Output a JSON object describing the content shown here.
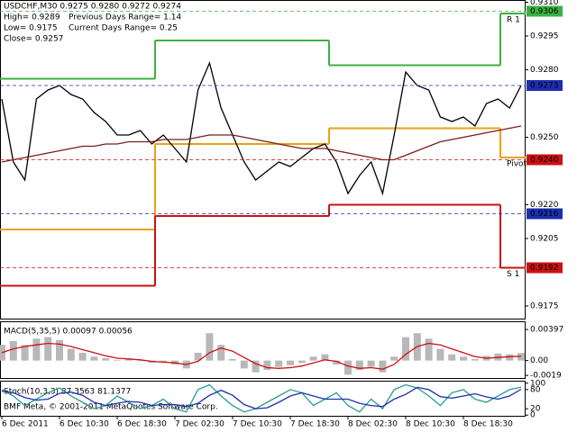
{
  "chart_data": [
    {
      "type": "line",
      "title": "USDCHF,M30  0.9275 0.9280 0.9272 0.9274",
      "annotations": [
        "High= 0.9289",
        "Previous Days Range= 1.14",
        "Low= 0.9175",
        "Current Days Range= 0.25",
        "Close= 0.9257"
      ],
      "categories": [
        "6 Dec 2011",
        null,
        null,
        null,
        null,
        "6 Dec 10:30",
        null,
        null,
        null,
        null,
        "6 Dec 18:30",
        null,
        null,
        null,
        null,
        "7 Dec 02:30",
        null,
        null,
        null,
        null,
        "7 Dec 10:30",
        null,
        null,
        null,
        null,
        "7 Dec 18:30",
        null,
        null,
        null,
        null,
        "8 Dec 02:30",
        null,
        null,
        null,
        null,
        "8 Dec 10:30",
        null,
        null,
        null,
        null,
        "8 Dec 18:30",
        null,
        null,
        null,
        null,
        null
      ],
      "series": [
        {
          "color": "#000000",
          "values": [
            0.9267,
            0.9239,
            0.9231,
            0.9267,
            0.9271,
            0.9273,
            0.9269,
            0.9267,
            0.9261,
            0.9257,
            0.9251,
            0.9251,
            0.9253,
            0.9247,
            0.9251,
            0.9245,
            0.9239,
            0.9271,
            0.9283,
            0.9263,
            0.9251,
            0.9239,
            0.9231,
            0.9235,
            0.9239,
            0.9237,
            0.9241,
            0.9245,
            0.9247,
            0.9239,
            0.9225,
            0.9233,
            0.9239,
            0.9225,
            0.9251,
            0.9279,
            0.9273,
            0.9271,
            0.9259,
            0.9257,
            0.9259,
            0.9255,
            0.9265,
            0.9267,
            0.9263,
            0.9273
          ]
        },
        {
          "color": "#7b1c1c",
          "values": [
            0.9239,
            0.924,
            0.9241,
            0.9242,
            0.9243,
            0.9244,
            0.9245,
            0.9246,
            0.9246,
            0.9247,
            0.9247,
            0.9248,
            0.9248,
            0.9248,
            0.9249,
            0.9249,
            0.9249,
            0.925,
            0.9251,
            0.9251,
            0.9251,
            0.925,
            0.9249,
            0.9248,
            0.9247,
            0.9246,
            0.9245,
            0.9245,
            0.9245,
            0.9244,
            0.9243,
            0.9242,
            0.9241,
            0.924,
            0.924,
            0.9242,
            0.9244,
            0.9246,
            0.9248,
            0.9249,
            0.925,
            0.9251,
            0.9252,
            0.9253,
            0.9254,
            0.9255
          ]
        }
      ],
      "step_levels": [
        {
          "label": "R 1",
          "color": "#3cb043",
          "values": [
            0.9276,
            0.9293,
            0.9282,
            0.9305
          ]
        },
        {
          "label": "Pivot",
          "color": "#e8a317",
          "values": [
            0.9209,
            0.9247,
            0.9254,
            0.9241
          ]
        },
        {
          "label": "S 1",
          "color": "#cc1111",
          "values": [
            0.9184,
            0.9215,
            0.922,
            0.9192
          ]
        }
      ],
      "price_levels": [
        {
          "value": 0.9306,
          "color": "#3cb043"
        },
        {
          "value": 0.9273,
          "color": "#1c2fb0"
        },
        {
          "value": 0.924,
          "label": "0.9240",
          "color": "#cc1111"
        },
        {
          "value": 0.9216,
          "color": "#1c2fb0"
        },
        {
          "value": 0.9192,
          "color": "#cc1111"
        }
      ],
      "ylim": [
        0.9169,
        0.9311
      ],
      "yticks": [
        {
          "value": 0.931,
          "label": "0.9310"
        },
        0.9295,
        {
          "value": 0.928,
          "label": "0.9280"
        },
        {
          "value": 0.925,
          "label": "0.9250"
        },
        {
          "value": 0.922,
          "label": "0.9220"
        },
        0.9205,
        0.9175
      ]
    },
    {
      "type": "bar",
      "title": "MACD(5,35,5) 0.00097 0.00056",
      "color": "#b8b8b8",
      "values": [
        0.002,
        0.0025,
        0.002,
        0.0028,
        0.003,
        0.0026,
        0.0015,
        0.001,
        0.0005,
        0.0003,
        0.0001,
        0.0003,
        0,
        -0.0003,
        -0.0002,
        -0.0005,
        -0.001,
        0.001,
        0.0035,
        0.002,
        0.0002,
        -0.001,
        -0.0015,
        -0.0012,
        -0.0008,
        -0.0006,
        -0.0003,
        0.0005,
        0.0008,
        -0.0005,
        -0.0018,
        -0.0012,
        -0.0008,
        -0.0015,
        0.0005,
        0.003,
        0.0035,
        0.0028,
        0.0015,
        0.0008,
        0.0005,
        0.0002,
        0.0006,
        0.0009,
        0.0008,
        0.00097
      ],
      "signal": {
        "color": "#cc1111",
        "values": [
          0.001,
          0.0015,
          0.0018,
          0.002,
          0.0022,
          0.0021,
          0.0018,
          0.0014,
          0.001,
          0.0006,
          0.0003,
          0.0002,
          0.0001,
          -0.0001,
          -0.0002,
          -0.0003,
          -0.0005,
          -0.0001,
          0.001,
          0.0016,
          0.0012,
          0.0004,
          -0.0004,
          -0.0009,
          -0.001,
          -0.0009,
          -0.0007,
          -0.0003,
          0.0001,
          -0.0001,
          -0.0007,
          -0.001,
          -0.0009,
          -0.0011,
          -0.0005,
          0.0008,
          0.0018,
          0.0022,
          0.002,
          0.0015,
          0.001,
          0.0005,
          0.0003,
          0.0004,
          0.0005,
          0.00056
        ]
      },
      "ylim": [
        -0.00234,
        0.0049
      ],
      "yticks": [
        0.00397,
        {
          "value": 0,
          "label": "0.00"
        },
        -0.0019
      ]
    },
    {
      "type": "line",
      "title": "Stoch(10,3,3) 87.3563 81.1377",
      "credit": "BMF Meta, © 2001-2011 MetaQuotes Software Corp.",
      "series": [
        {
          "color": "#2a9d8f",
          "values": [
            80,
            60,
            30,
            50,
            70,
            85,
            60,
            40,
            20,
            30,
            60,
            40,
            20,
            30,
            50,
            20,
            10,
            80,
            95,
            60,
            30,
            10,
            20,
            40,
            60,
            80,
            70,
            30,
            50,
            70,
            30,
            10,
            50,
            20,
            80,
            95,
            85,
            60,
            30,
            70,
            80,
            50,
            40,
            60,
            80,
            87.3563
          ]
        },
        {
          "color": "#1c2fb0",
          "values": [
            75,
            70,
            55,
            47,
            50,
            68,
            72,
            62,
            40,
            30,
            37,
            43,
            40,
            30,
            33,
            33,
            27,
            37,
            62,
            78,
            62,
            33,
            20,
            23,
            40,
            60,
            70,
            60,
            50,
            50,
            50,
            37,
            30,
            27,
            50,
            65,
            87,
            80,
            58,
            53,
            60,
            67,
            57,
            50,
            60,
            81.1377
          ]
        }
      ],
      "ylim": [
        -5,
        105
      ],
      "yticks": [
        100,
        80,
        20,
        0
      ]
    }
  ]
}
